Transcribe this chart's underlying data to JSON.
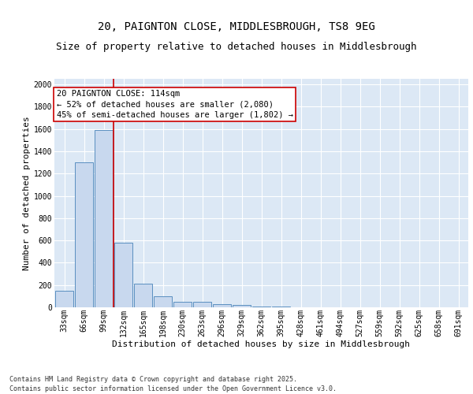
{
  "title_line1": "20, PAIGNTON CLOSE, MIDDLESBROUGH, TS8 9EG",
  "title_line2": "Size of property relative to detached houses in Middlesbrough",
  "xlabel": "Distribution of detached houses by size in Middlesbrough",
  "ylabel": "Number of detached properties",
  "categories": [
    "33sqm",
    "66sqm",
    "99sqm",
    "132sqm",
    "165sqm",
    "198sqm",
    "230sqm",
    "263sqm",
    "296sqm",
    "329sqm",
    "362sqm",
    "395sqm",
    "428sqm",
    "461sqm",
    "494sqm",
    "527sqm",
    "559sqm",
    "592sqm",
    "625sqm",
    "658sqm",
    "691sqm"
  ],
  "values": [
    145,
    1300,
    1590,
    580,
    215,
    100,
    50,
    50,
    25,
    18,
    10,
    5,
    2,
    1,
    1,
    0,
    0,
    0,
    0,
    0,
    0
  ],
  "bar_color": "#c8d8ee",
  "bar_edge_color": "#5a8fc0",
  "vline_x": 2.5,
  "vline_color": "#cc0000",
  "annotation_text": "20 PAIGNTON CLOSE: 114sqm\n← 52% of detached houses are smaller (2,080)\n45% of semi-detached houses are larger (1,802) →",
  "annotation_box_color": "#ffffff",
  "annotation_box_edge": "#cc0000",
  "ylim": [
    0,
    2050
  ],
  "yticks": [
    0,
    200,
    400,
    600,
    800,
    1000,
    1200,
    1400,
    1600,
    1800,
    2000
  ],
  "background_color": "#dce8f5",
  "grid_color": "#ffffff",
  "footer_line1": "Contains HM Land Registry data © Crown copyright and database right 2025.",
  "footer_line2": "Contains public sector information licensed under the Open Government Licence v3.0.",
  "title_fontsize": 10,
  "subtitle_fontsize": 9,
  "axis_label_fontsize": 8,
  "tick_fontsize": 7,
  "annotation_fontsize": 7.5,
  "footer_fontsize": 6
}
